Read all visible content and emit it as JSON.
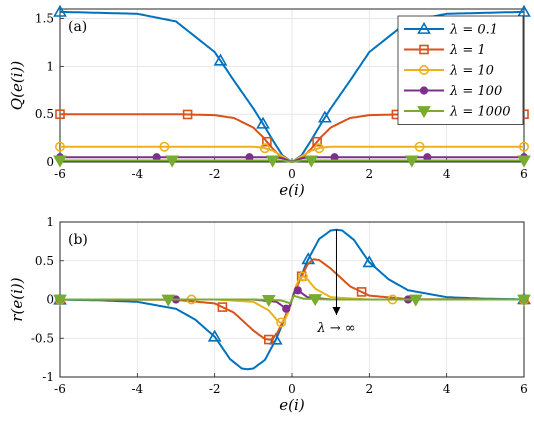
{
  "chart_data": [
    {
      "type": "line",
      "panel_label": "(a)",
      "xlabel": "e(i)",
      "ylabel": "Q(e(i))",
      "xlim": [
        -6,
        6
      ],
      "ylim": [
        0,
        1.6
      ],
      "xticks": [
        "-6",
        "-4",
        "-2",
        "0",
        "2",
        "4",
        "6"
      ],
      "yticks": [
        "0",
        "0.5",
        "1",
        "1.5"
      ],
      "grid": true,
      "legend_position": "top-right",
      "x": [
        -6,
        -4,
        -3,
        -2,
        -1.5,
        -1,
        -0.75,
        -0.5,
        -0.25,
        0,
        0.25,
        0.5,
        0.75,
        1,
        1.5,
        2,
        3,
        4,
        6
      ],
      "series": [
        {
          "name": "λ = 0.1",
          "color": "#0072BD",
          "marker": "triangle-up",
          "values": [
            1.57,
            1.55,
            1.47,
            1.15,
            0.85,
            0.56,
            0.4,
            0.23,
            0.07,
            0,
            0.07,
            0.23,
            0.4,
            0.56,
            0.85,
            1.15,
            1.47,
            1.55,
            1.57
          ],
          "marker_x": [
            -6,
            -1.85,
            -0.75,
            0.85,
            6
          ]
        },
        {
          "name": "λ = 1",
          "color": "#D95319",
          "marker": "square",
          "values": [
            0.5,
            0.5,
            0.5,
            0.49,
            0.46,
            0.36,
            0.26,
            0.14,
            0.04,
            0,
            0.04,
            0.14,
            0.26,
            0.36,
            0.46,
            0.49,
            0.5,
            0.5,
            0.5
          ],
          "marker_x": [
            -6,
            -2.7,
            -0.65,
            0.65,
            2.7,
            6
          ]
        },
        {
          "name": "λ = 10",
          "color": "#EDB120",
          "marker": "circle",
          "values": [
            0.16,
            0.16,
            0.16,
            0.16,
            0.16,
            0.16,
            0.15,
            0.12,
            0.06,
            0,
            0.06,
            0.12,
            0.15,
            0.16,
            0.16,
            0.16,
            0.16,
            0.16,
            0.16
          ],
          "marker_x": [
            -6,
            -3.3,
            -0.7,
            0.7,
            3.3,
            6
          ]
        },
        {
          "name": "λ = 100",
          "color": "#7E2F8E",
          "marker": "star",
          "values": [
            0.05,
            0.05,
            0.05,
            0.05,
            0.05,
            0.05,
            0.05,
            0.05,
            0.04,
            0,
            0.04,
            0.05,
            0.05,
            0.05,
            0.05,
            0.05,
            0.05,
            0.05,
            0.05
          ],
          "marker_x": [
            -6,
            -3.5,
            -1.1,
            1.1,
            3.5,
            6
          ]
        },
        {
          "name": "λ = 1000",
          "color": "#77AC30",
          "marker": "triangle-down",
          "values": [
            0.016,
            0.016,
            0.016,
            0.016,
            0.016,
            0.016,
            0.016,
            0.016,
            0.015,
            0,
            0.015,
            0.016,
            0.016,
            0.016,
            0.016,
            0.016,
            0.016,
            0.016,
            0.016
          ],
          "marker_x": [
            -6,
            -3.1,
            -0.5,
            0.5,
            3.1,
            6
          ]
        }
      ]
    },
    {
      "type": "line",
      "panel_label": "(b)",
      "xlabel": "e(i)",
      "ylabel": "r(e(i))",
      "xlim": [
        -6,
        6
      ],
      "ylim": [
        -1,
        1
      ],
      "xticks": [
        "-6",
        "-4",
        "-2",
        "0",
        "2",
        "4",
        "6"
      ],
      "yticks": [
        "-1",
        "-0.5",
        "0",
        "0.5",
        "1"
      ],
      "grid": true,
      "annotation": "λ → ∞",
      "arrow_from": [
        1.15,
        0.9
      ],
      "arrow_to": [
        1.15,
        -0.2
      ],
      "series": [
        {
          "name": "λ = 0.1",
          "color": "#0072BD",
          "marker": "triangle-up",
          "x": [
            -6,
            -5,
            -4,
            -3,
            -2.5,
            -2,
            -1.6,
            -1.3,
            -1.15,
            -1,
            -0.7,
            -0.4,
            -0.2,
            0,
            0.2,
            0.4,
            0.7,
            1,
            1.15,
            1.3,
            1.6,
            2,
            2.5,
            3,
            4,
            5,
            6
          ],
          "values": [
            -0.003,
            -0.01,
            -0.03,
            -0.12,
            -0.26,
            -0.48,
            -0.77,
            -0.89,
            -0.9,
            -0.89,
            -0.78,
            -0.5,
            -0.26,
            0,
            0.26,
            0.5,
            0.78,
            0.89,
            0.9,
            0.89,
            0.77,
            0.48,
            0.26,
            0.12,
            0.03,
            0.01,
            0.003
          ],
          "marker_x": [
            -6,
            -2,
            -0.42,
            0.42,
            2,
            6
          ]
        },
        {
          "name": "λ = 1",
          "color": "#D95319",
          "marker": "square",
          "x": [
            -6,
            -3,
            -2,
            -1.5,
            -1,
            -0.7,
            -0.55,
            -0.4,
            -0.2,
            0,
            0.2,
            0.4,
            0.55,
            0.7,
            1,
            1.5,
            2,
            3,
            6
          ],
          "values": [
            0,
            -0.005,
            -0.05,
            -0.17,
            -0.4,
            -0.51,
            -0.52,
            -0.45,
            -0.25,
            0,
            0.25,
            0.45,
            0.52,
            0.51,
            0.4,
            0.17,
            0.05,
            0.005,
            0
          ],
          "marker_x": [
            -6,
            -1.8,
            -0.6,
            0.25,
            1.8,
            6
          ]
        },
        {
          "name": "λ = 10",
          "color": "#EDB120",
          "marker": "circle",
          "x": [
            -6,
            -2,
            -1,
            -0.6,
            -0.4,
            -0.3,
            -0.2,
            -0.1,
            0,
            0.1,
            0.2,
            0.3,
            0.4,
            0.6,
            1,
            2,
            6
          ],
          "values": [
            0,
            0,
            -0.03,
            -0.14,
            -0.26,
            -0.3,
            -0.28,
            -0.17,
            0,
            0.17,
            0.28,
            0.3,
            0.26,
            0.14,
            0.03,
            0,
            0
          ],
          "marker_x": [
            -6,
            -2.6,
            -0.28,
            0.28,
            2.6,
            6
          ]
        },
        {
          "name": "λ = 100",
          "color": "#7E2F8E",
          "marker": "star",
          "x": [
            -6,
            -1,
            -0.4,
            -0.2,
            -0.12,
            -0.06,
            0,
            0.06,
            0.12,
            0.2,
            0.4,
            1,
            6
          ],
          "values": [
            0,
            0,
            -0.03,
            -0.1,
            -0.13,
            -0.1,
            0,
            0.1,
            0.13,
            0.1,
            0.03,
            0,
            0
          ],
          "marker_x": [
            -6,
            -3,
            -0.15,
            0.15,
            3,
            6
          ]
        },
        {
          "name": "λ = 1000",
          "color": "#77AC30",
          "marker": "triangle-down",
          "x": [
            -6,
            -1,
            -0.3,
            -0.1,
            -0.05,
            0,
            0.05,
            0.1,
            0.3,
            1,
            6
          ],
          "values": [
            0,
            0,
            -0.01,
            -0.04,
            -0.05,
            0,
            0.05,
            0.04,
            0.01,
            0,
            0
          ],
          "marker_x": [
            -6,
            -3.2,
            -0.6,
            0.6,
            3.2,
            6
          ]
        }
      ]
    }
  ]
}
